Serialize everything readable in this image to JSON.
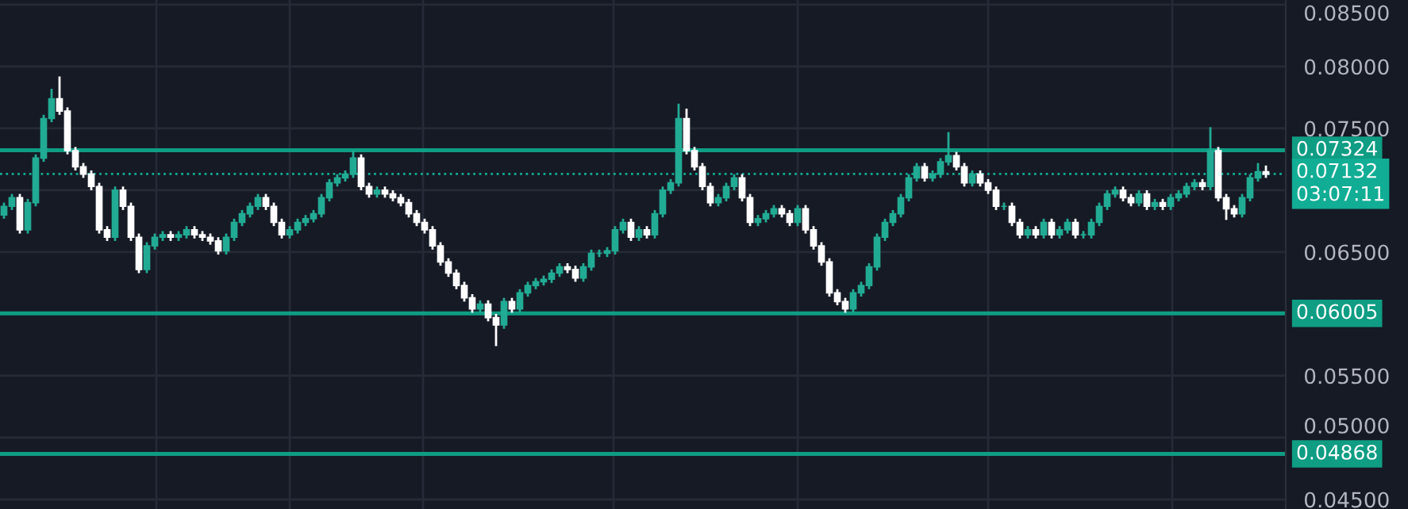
{
  "chart_data": {
    "type": "candlestick",
    "categories": [
      null,
      null,
      null,
      null,
      null,
      null,
      null,
      null,
      null,
      null,
      null,
      null,
      null,
      null,
      null,
      null,
      null,
      null,
      null,
      null,
      null,
      null,
      null,
      null,
      null,
      null,
      null,
      null,
      null,
      null,
      null,
      null,
      null,
      null,
      null,
      null,
      null,
      null,
      null,
      null,
      null,
      null,
      null,
      null,
      null,
      null,
      null,
      null,
      null,
      null,
      null,
      null,
      null,
      null,
      null,
      null,
      null,
      null,
      null,
      null,
      null,
      null,
      null,
      null,
      null,
      null,
      null,
      null,
      null,
      null,
      null,
      null,
      null,
      null,
      null,
      null,
      null,
      null,
      null,
      null,
      null,
      null,
      null,
      null,
      null,
      null,
      null,
      null,
      null,
      null,
      null,
      null,
      null,
      null,
      null,
      null,
      null,
      null,
      null,
      null,
      null,
      null,
      null,
      null,
      null,
      null,
      null,
      null,
      null,
      null,
      null,
      null,
      null,
      null,
      null,
      null,
      null,
      null,
      null,
      null,
      null,
      null,
      null,
      null,
      null,
      null,
      null,
      null,
      null,
      null,
      null,
      null,
      null,
      null,
      null,
      null,
      null,
      null,
      null,
      null,
      null,
      null,
      null,
      null,
      null,
      null,
      null,
      null,
      null,
      null,
      null,
      null,
      null,
      null,
      null,
      null,
      null,
      null,
      null,
      null
    ],
    "ohlc": [
      [
        0.068,
        0.069,
        0.0677,
        0.0687
      ],
      [
        0.0687,
        0.0697,
        0.0684,
        0.0694
      ],
      [
        0.0694,
        0.0697,
        0.0665,
        0.0668
      ],
      [
        0.0668,
        0.0693,
        0.0665,
        0.069
      ],
      [
        0.069,
        0.0729,
        0.0687,
        0.0726
      ],
      [
        0.0726,
        0.0761,
        0.0723,
        0.0758
      ],
      [
        0.0758,
        0.0782,
        0.0755,
        0.0774
      ],
      [
        0.0774,
        0.0792,
        0.0761,
        0.0764
      ],
      [
        0.0764,
        0.0767,
        0.0729,
        0.0732
      ],
      [
        0.0732,
        0.0735,
        0.0716,
        0.0719
      ],
      [
        0.0719,
        0.0722,
        0.071,
        0.0713
      ],
      [
        0.0713,
        0.0716,
        0.07,
        0.0703
      ],
      [
        0.0703,
        0.0706,
        0.0665,
        0.0668
      ],
      [
        0.0668,
        0.0671,
        0.0659,
        0.0662
      ],
      [
        0.0662,
        0.0703,
        0.0659,
        0.07
      ],
      [
        0.07,
        0.0703,
        0.0684,
        0.0687
      ],
      [
        0.0687,
        0.069,
        0.0659,
        0.0662
      ],
      [
        0.0662,
        0.0665,
        0.0633,
        0.0636
      ],
      [
        0.0636,
        0.0658,
        0.0633,
        0.0655
      ],
      [
        0.0655,
        0.0665,
        0.0652,
        0.0662
      ],
      [
        0.0662,
        0.0667,
        0.0659,
        0.0664
      ],
      [
        0.0664,
        0.0667,
        0.0659,
        0.0662
      ],
      [
        0.0662,
        0.0667,
        0.0659,
        0.0664
      ],
      [
        0.0664,
        0.0671,
        0.0661,
        0.0668
      ],
      [
        0.0668,
        0.0671,
        0.0661,
        0.0664
      ],
      [
        0.0664,
        0.0667,
        0.0659,
        0.0662
      ],
      [
        0.0662,
        0.0665,
        0.0656,
        0.0659
      ],
      [
        0.0659,
        0.0662,
        0.0648,
        0.0651
      ],
      [
        0.0651,
        0.0665,
        0.0648,
        0.0662
      ],
      [
        0.0662,
        0.0677,
        0.0659,
        0.0674
      ],
      [
        0.0674,
        0.0684,
        0.0671,
        0.0681
      ],
      [
        0.0681,
        0.069,
        0.0678,
        0.0687
      ],
      [
        0.0687,
        0.0697,
        0.0684,
        0.0694
      ],
      [
        0.0694,
        0.0697,
        0.0684,
        0.0687
      ],
      [
        0.0687,
        0.069,
        0.0671,
        0.0674
      ],
      [
        0.0674,
        0.0677,
        0.0661,
        0.0664
      ],
      [
        0.0664,
        0.0671,
        0.0661,
        0.0668
      ],
      [
        0.0668,
        0.0677,
        0.0665,
        0.0674
      ],
      [
        0.0674,
        0.068,
        0.0671,
        0.0677
      ],
      [
        0.0677,
        0.0684,
        0.0674,
        0.0681
      ],
      [
        0.0681,
        0.0697,
        0.0678,
        0.0694
      ],
      [
        0.0694,
        0.0709,
        0.0691,
        0.0706
      ],
      [
        0.0706,
        0.0713,
        0.0703,
        0.071
      ],
      [
        0.071,
        0.0716,
        0.0707,
        0.0713
      ],
      [
        0.0713,
        0.0732,
        0.071,
        0.0726
      ],
      [
        0.0726,
        0.0729,
        0.07,
        0.0703
      ],
      [
        0.0703,
        0.0706,
        0.0694,
        0.0697
      ],
      [
        0.0697,
        0.0703,
        0.0694,
        0.07
      ],
      [
        0.07,
        0.0703,
        0.0694,
        0.0697
      ],
      [
        0.0697,
        0.07,
        0.0691,
        0.0694
      ],
      [
        0.0694,
        0.0697,
        0.0687,
        0.069
      ],
      [
        0.069,
        0.0693,
        0.0678,
        0.0681
      ],
      [
        0.0681,
        0.0684,
        0.0671,
        0.0674
      ],
      [
        0.0674,
        0.0677,
        0.0665,
        0.0668
      ],
      [
        0.0668,
        0.0671,
        0.0652,
        0.0655
      ],
      [
        0.0655,
        0.0658,
        0.0639,
        0.0642
      ],
      [
        0.0642,
        0.0645,
        0.063,
        0.0633
      ],
      [
        0.0633,
        0.0636,
        0.062,
        0.0623
      ],
      [
        0.0623,
        0.0626,
        0.061,
        0.0613
      ],
      [
        0.0613,
        0.0616,
        0.0601,
        0.0604
      ],
      [
        0.0604,
        0.0611,
        0.0601,
        0.0608
      ],
      [
        0.0608,
        0.0611,
        0.0594,
        0.0597
      ],
      [
        0.0597,
        0.06,
        0.0574,
        0.0591
      ],
      [
        0.0591,
        0.0613,
        0.0588,
        0.061
      ],
      [
        0.061,
        0.0613,
        0.0601,
        0.0604
      ],
      [
        0.0604,
        0.062,
        0.0601,
        0.0617
      ],
      [
        0.0617,
        0.0626,
        0.0614,
        0.0623
      ],
      [
        0.0623,
        0.0629,
        0.062,
        0.0626
      ],
      [
        0.0626,
        0.0631,
        0.0623,
        0.0628
      ],
      [
        0.0628,
        0.0636,
        0.0625,
        0.0633
      ],
      [
        0.0633,
        0.0641,
        0.063,
        0.0638
      ],
      [
        0.0638,
        0.0641,
        0.0633,
        0.0636
      ],
      [
        0.0636,
        0.0639,
        0.0626,
        0.0629
      ],
      [
        0.0629,
        0.0641,
        0.0626,
        0.0638
      ],
      [
        0.0638,
        0.0652,
        0.0635,
        0.0649
      ],
      [
        0.0649,
        0.0652,
        0.0646,
        0.0649
      ],
      [
        0.0649,
        0.0654,
        0.0646,
        0.0651
      ],
      [
        0.0651,
        0.0671,
        0.0648,
        0.0668
      ],
      [
        0.0668,
        0.0677,
        0.0665,
        0.0674
      ],
      [
        0.0674,
        0.0677,
        0.0659,
        0.0662
      ],
      [
        0.0662,
        0.0671,
        0.0659,
        0.0668
      ],
      [
        0.0668,
        0.0671,
        0.0661,
        0.0664
      ],
      [
        0.0664,
        0.0684,
        0.0661,
        0.0681
      ],
      [
        0.0681,
        0.0703,
        0.0678,
        0.07
      ],
      [
        0.07,
        0.0709,
        0.0697,
        0.0706
      ],
      [
        0.0706,
        0.077,
        0.0703,
        0.0758
      ],
      [
        0.0758,
        0.0766,
        0.0729,
        0.0732
      ],
      [
        0.0732,
        0.0735,
        0.0716,
        0.0719
      ],
      [
        0.0719,
        0.0722,
        0.07,
        0.0703
      ],
      [
        0.0703,
        0.0706,
        0.0687,
        0.069
      ],
      [
        0.069,
        0.0697,
        0.0687,
        0.0694
      ],
      [
        0.0694,
        0.0706,
        0.0691,
        0.0703
      ],
      [
        0.0703,
        0.0713,
        0.07,
        0.071
      ],
      [
        0.071,
        0.0713,
        0.0691,
        0.0694
      ],
      [
        0.0694,
        0.0697,
        0.0671,
        0.0674
      ],
      [
        0.0674,
        0.068,
        0.0671,
        0.0677
      ],
      [
        0.0677,
        0.0684,
        0.0674,
        0.0681
      ],
      [
        0.0681,
        0.0688,
        0.0678,
        0.0685
      ],
      [
        0.0685,
        0.0688,
        0.0678,
        0.0681
      ],
      [
        0.0681,
        0.0684,
        0.0671,
        0.0674
      ],
      [
        0.0674,
        0.0688,
        0.0671,
        0.0685
      ],
      [
        0.0685,
        0.0688,
        0.0665,
        0.0668
      ],
      [
        0.0668,
        0.0671,
        0.0652,
        0.0655
      ],
      [
        0.0655,
        0.0658,
        0.0639,
        0.0642
      ],
      [
        0.0642,
        0.0645,
        0.0614,
        0.0617
      ],
      [
        0.0617,
        0.062,
        0.0607,
        0.061
      ],
      [
        0.061,
        0.0613,
        0.0601,
        0.0604
      ],
      [
        0.0604,
        0.062,
        0.0601,
        0.0617
      ],
      [
        0.0617,
        0.0626,
        0.0614,
        0.0623
      ],
      [
        0.0623,
        0.0641,
        0.062,
        0.0638
      ],
      [
        0.0638,
        0.0665,
        0.0635,
        0.0662
      ],
      [
        0.0662,
        0.0677,
        0.0659,
        0.0674
      ],
      [
        0.0674,
        0.0684,
        0.0671,
        0.0681
      ],
      [
        0.0681,
        0.0697,
        0.0678,
        0.0694
      ],
      [
        0.0694,
        0.0713,
        0.0691,
        0.071
      ],
      [
        0.071,
        0.0722,
        0.0707,
        0.0719
      ],
      [
        0.0719,
        0.0722,
        0.0707,
        0.071
      ],
      [
        0.071,
        0.0716,
        0.0707,
        0.0713
      ],
      [
        0.0713,
        0.0726,
        0.071,
        0.0723
      ],
      [
        0.0723,
        0.0747,
        0.072,
        0.0728
      ],
      [
        0.0728,
        0.0731,
        0.0716,
        0.0719
      ],
      [
        0.0719,
        0.0722,
        0.0703,
        0.0706
      ],
      [
        0.0706,
        0.0716,
        0.0703,
        0.0713
      ],
      [
        0.0713,
        0.0716,
        0.0703,
        0.0706
      ],
      [
        0.0706,
        0.0709,
        0.0697,
        0.07
      ],
      [
        0.07,
        0.0703,
        0.0684,
        0.0687
      ],
      [
        0.0687,
        0.069,
        0.0684,
        0.0687
      ],
      [
        0.0687,
        0.069,
        0.0671,
        0.0674
      ],
      [
        0.0674,
        0.0677,
        0.0661,
        0.0664
      ],
      [
        0.0664,
        0.0671,
        0.0661,
        0.0668
      ],
      [
        0.0668,
        0.0671,
        0.0661,
        0.0664
      ],
      [
        0.0664,
        0.0677,
        0.0661,
        0.0674
      ],
      [
        0.0674,
        0.0677,
        0.0661,
        0.0664
      ],
      [
        0.0664,
        0.0671,
        0.0661,
        0.0668
      ],
      [
        0.0668,
        0.0677,
        0.0665,
        0.0674
      ],
      [
        0.0674,
        0.0677,
        0.0661,
        0.0664
      ],
      [
        0.0664,
        0.0667,
        0.0661,
        0.0664
      ],
      [
        0.0664,
        0.0677,
        0.0661,
        0.0674
      ],
      [
        0.0674,
        0.069,
        0.0671,
        0.0687
      ],
      [
        0.0687,
        0.07,
        0.0684,
        0.0697
      ],
      [
        0.0697,
        0.0703,
        0.0694,
        0.07
      ],
      [
        0.07,
        0.0703,
        0.0691,
        0.0694
      ],
      [
        0.0694,
        0.0697,
        0.0687,
        0.069
      ],
      [
        0.069,
        0.07,
        0.0687,
        0.0697
      ],
      [
        0.0697,
        0.07,
        0.0684,
        0.0687
      ],
      [
        0.0687,
        0.0693,
        0.0684,
        0.069
      ],
      [
        0.069,
        0.0693,
        0.0684,
        0.0687
      ],
      [
        0.0687,
        0.0697,
        0.0684,
        0.0694
      ],
      [
        0.0694,
        0.07,
        0.0691,
        0.0697
      ],
      [
        0.0697,
        0.0706,
        0.0694,
        0.0703
      ],
      [
        0.0703,
        0.0709,
        0.07,
        0.0706
      ],
      [
        0.0706,
        0.0709,
        0.07,
        0.0703
      ],
      [
        0.0703,
        0.0751,
        0.07,
        0.0732
      ],
      [
        0.0732,
        0.0735,
        0.0691,
        0.0694
      ],
      [
        0.0694,
        0.0697,
        0.0676,
        0.0685
      ],
      [
        0.0685,
        0.0688,
        0.0678,
        0.0681
      ],
      [
        0.0681,
        0.0697,
        0.0678,
        0.0694
      ],
      [
        0.0694,
        0.0713,
        0.0691,
        0.071
      ],
      [
        0.071,
        0.0722,
        0.0707,
        0.0715
      ],
      [
        0.0715,
        0.072,
        0.071,
        0.0713
      ]
    ],
    "ylim": [
      0.04423,
      0.08538
    ],
    "yticks": [
      {
        "value": 0.045,
        "label": "0.04500"
      },
      {
        "value": 0.05,
        "label": "0.05000"
      },
      {
        "value": 0.055,
        "label": "0.05500"
      },
      {
        "value": 0.06,
        "label": null
      },
      {
        "value": 0.065,
        "label": "0.06500"
      },
      {
        "value": 0.07,
        "label": null
      },
      {
        "value": 0.075,
        "label": "0.07500"
      },
      {
        "value": 0.08,
        "label": "0.08000"
      },
      {
        "value": 0.085,
        "label": "0.08500"
      }
    ],
    "tick_labels": "y",
    "grid": true,
    "ref_lines": [
      {
        "axis": "y",
        "value": 0.07324,
        "label": "0.07324",
        "color": "#0f9d84",
        "line_style": "solid"
      },
      {
        "axis": "y",
        "value": 0.07132,
        "label": "0.07132\n03:07:11",
        "color": "#11ad95",
        "line_style": "dotted"
      },
      {
        "axis": "y",
        "value": 0.06005,
        "label": "0.06005",
        "color": "#0f9d84",
        "line_style": "solid"
      },
      {
        "axis": "y",
        "value": 0.04868,
        "label": "0.04868",
        "color": "#0f9d84",
        "line_style": "solid"
      }
    ]
  }
}
